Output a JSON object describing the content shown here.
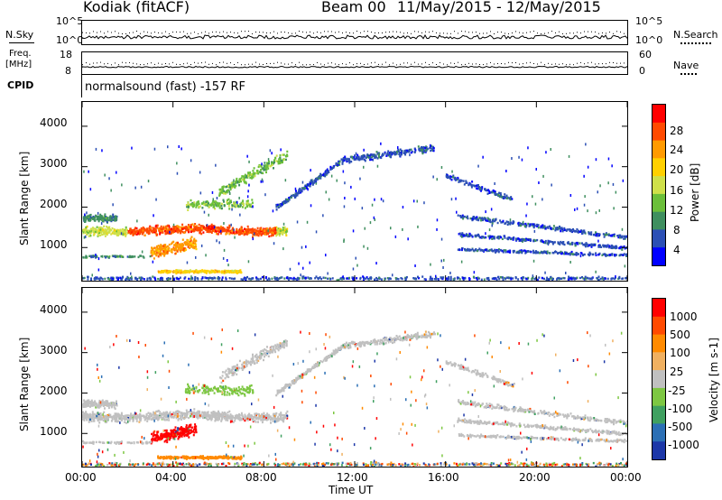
{
  "header": {
    "title": "Kodiak (fitACF)",
    "beam": "Beam 00",
    "date_range": "11/May/2015 - 12/May/2015"
  },
  "strips": {
    "nsky": {
      "label": "N.Sky",
      "left_ticks": [
        "10^5",
        "10^0"
      ]
    },
    "nsearch": {
      "label": "N.Search",
      "right_ticks": [
        "10^5",
        "10^0"
      ]
    },
    "freq": {
      "label_line1": "Freq.",
      "label_line2": "[MHz]",
      "left_ticks": [
        "18",
        "8"
      ]
    },
    "nave": {
      "label": "Nave",
      "right_ticks": [
        "60",
        "0"
      ]
    },
    "cpid": {
      "label": "CPID",
      "value": "normalsound (fast) -157 RF"
    }
  },
  "chart_data": [
    {
      "type": "heatmap",
      "name": "power-panel",
      "ylabel": "Slant Range [km]",
      "yticks": [
        1000,
        2000,
        3000,
        4000
      ],
      "ylim": [
        180,
        4600
      ],
      "xticks": [
        "00:00",
        "04:00",
        "08:00",
        "12:00",
        "16:00",
        "20:00",
        "00:00"
      ],
      "xlim_hours": [
        0,
        24
      ],
      "colorbar": {
        "label": "Power [dB]",
        "ticks": [
          "28",
          "24",
          "20",
          "16",
          "12",
          "8",
          "4"
        ]
      },
      "colors": [
        "#0000ff",
        "#2b4fb5",
        "#3f8f5f",
        "#6bbf3a",
        "#cfe04a",
        "#ffd000",
        "#ff9a00",
        "#ff4a00",
        "#ff0000"
      ]
    },
    {
      "type": "heatmap",
      "name": "velocity-panel",
      "ylabel": "Slant Range [km]",
      "yticks": [
        1000,
        2000,
        3000,
        4000
      ],
      "ylim": [
        180,
        4600
      ],
      "xticks": [
        "00:00",
        "04:00",
        "08:00",
        "12:00",
        "16:00",
        "20:00",
        "00:00"
      ],
      "xlim_hours": [
        0,
        24
      ],
      "xlabel": "Time UT",
      "colorbar": {
        "label": "Velocity [m s-1]",
        "ticks": [
          "1000",
          "500",
          "100",
          "25",
          "-25",
          "-100",
          "-500",
          "-1000"
        ]
      },
      "colors": [
        "#1c37a8",
        "#2b6fb5",
        "#3fa060",
        "#7dc742",
        "#c0c0c0",
        "#f0b060",
        "#ff8a00",
        "#ff4a00",
        "#ff0000"
      ]
    }
  ]
}
